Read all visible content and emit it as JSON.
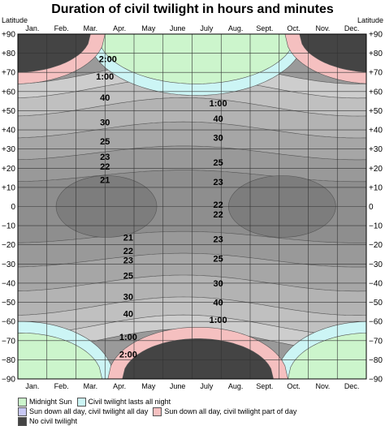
{
  "chart_data": {
    "type": "heatmap",
    "title": "Duration of civil twilight in hours and minutes",
    "ylabel": "Latitude",
    "ylim": [
      -90,
      90
    ],
    "yticks": [
      "+90",
      "+80",
      "+70",
      "+60",
      "+50",
      "+40",
      "+30",
      "+20",
      "+10",
      "0",
      "−10",
      "−20",
      "−30",
      "−40",
      "−50",
      "−60",
      "−70",
      "−80",
      "−90"
    ],
    "months": [
      "Jan.",
      "Feb.",
      "Mar.",
      "Apr.",
      "May",
      "June",
      "July",
      "Aug.",
      "Sept.",
      "Oct.",
      "Nov.",
      "Dec."
    ],
    "grid": true,
    "legend_position": "bottom",
    "legend": [
      {
        "key": "midnight_sun",
        "label": "Midnight Sun",
        "color": "#ccf5cc"
      },
      {
        "key": "twilight_all_night",
        "label": "Civil twilight lasts all night",
        "color": "#ccf5f5"
      },
      {
        "key": "sun_down_twilight_all_day",
        "label": "Sun down all day, civil twilight all day",
        "color": "#c8c8f5"
      },
      {
        "key": "sun_down_twilight_part_day",
        "label": "Sun down all day, civil twilight part of day",
        "color": "#f5c0c0"
      },
      {
        "key": "no_twilight",
        "label": "No civil twilight",
        "color": "#444444"
      }
    ],
    "contour_labels": [
      {
        "text": "2:00",
        "month": 3.1,
        "lat": 77
      },
      {
        "text": "1:00",
        "month": 3.0,
        "lat": 68
      },
      {
        "text": "40",
        "month": 3.0,
        "lat": 57
      },
      {
        "text": "30",
        "month": 3.0,
        "lat": 44
      },
      {
        "text": "25",
        "month": 3.0,
        "lat": 34
      },
      {
        "text": "23",
        "month": 3.0,
        "lat": 26
      },
      {
        "text": "22",
        "month": 3.0,
        "lat": 21
      },
      {
        "text": "21",
        "month": 3.0,
        "lat": 14
      },
      {
        "text": "21",
        "month": 3.8,
        "lat": -16
      },
      {
        "text": "22",
        "month": 3.8,
        "lat": -23
      },
      {
        "text": "23",
        "month": 3.8,
        "lat": -28
      },
      {
        "text": "25",
        "month": 3.8,
        "lat": -36
      },
      {
        "text": "30",
        "month": 3.8,
        "lat": -47
      },
      {
        "text": "40",
        "month": 3.8,
        "lat": -56
      },
      {
        "text": "1:00",
        "month": 3.8,
        "lat": -68
      },
      {
        "text": "2:00",
        "month": 3.8,
        "lat": -77
      },
      {
        "text": "1:00",
        "month": 6.9,
        "lat": 54
      },
      {
        "text": "40",
        "month": 6.9,
        "lat": 46
      },
      {
        "text": "30",
        "month": 6.9,
        "lat": 36
      },
      {
        "text": "25",
        "month": 6.9,
        "lat": 23
      },
      {
        "text": "23",
        "month": 6.9,
        "lat": 13
      },
      {
        "text": "22",
        "month": 6.9,
        "lat": 1
      },
      {
        "text": "22",
        "month": 6.9,
        "lat": -4
      },
      {
        "text": "23",
        "month": 6.9,
        "lat": -17
      },
      {
        "text": "25",
        "month": 6.9,
        "lat": -27
      },
      {
        "text": "30",
        "month": 6.9,
        "lat": -40
      },
      {
        "text": "40",
        "month": 6.9,
        "lat": -50
      },
      {
        "text": "1:00",
        "month": 6.9,
        "lat": -59
      }
    ]
  }
}
